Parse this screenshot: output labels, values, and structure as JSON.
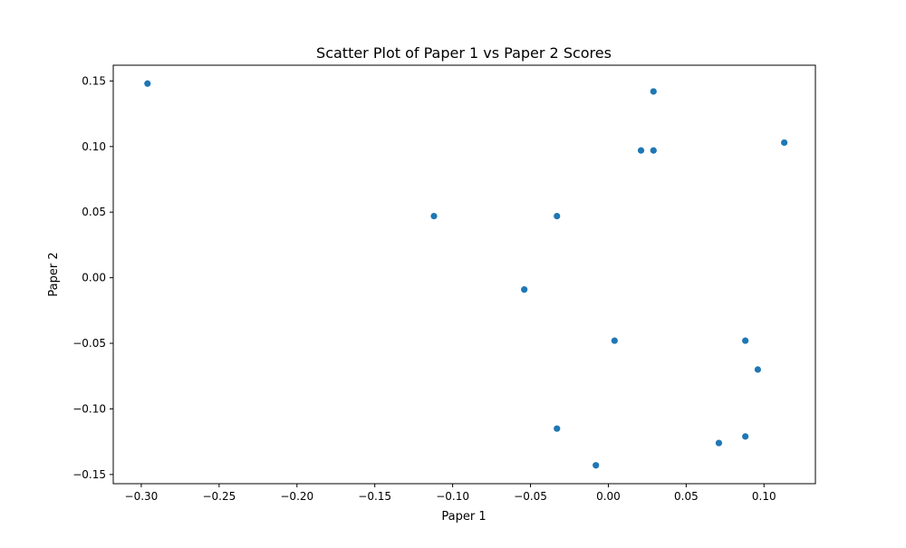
{
  "chart_data": {
    "type": "scatter",
    "title": "Scatter Plot of Paper 1 vs Paper 2 Scores",
    "xlabel": "Paper 1",
    "ylabel": "Paper 2",
    "xlim": [
      -0.318,
      0.133
    ],
    "ylim": [
      -0.157,
      0.162
    ],
    "x_ticks": [
      -0.3,
      -0.25,
      -0.2,
      -0.15,
      -0.1,
      -0.05,
      0.0,
      0.05,
      0.1
    ],
    "x_tick_labels": [
      "−0.30",
      "−0.25",
      "−0.20",
      "−0.15",
      "−0.10",
      "−0.05",
      "0.00",
      "0.05",
      "0.10"
    ],
    "y_ticks": [
      -0.15,
      -0.1,
      -0.05,
      0.0,
      0.05,
      0.1,
      0.15
    ],
    "y_tick_labels": [
      "−0.15",
      "−0.10",
      "−0.05",
      "0.00",
      "0.05",
      "0.10",
      "0.15"
    ],
    "grid": false,
    "marker_color": "#1f77b4",
    "series": [
      {
        "points": [
          {
            "x": -0.296,
            "y": 0.148
          },
          {
            "x": 0.029,
            "y": 0.142
          },
          {
            "x": 0.113,
            "y": 0.103
          },
          {
            "x": 0.021,
            "y": 0.097
          },
          {
            "x": 0.029,
            "y": 0.097
          },
          {
            "x": -0.112,
            "y": 0.047
          },
          {
            "x": -0.033,
            "y": 0.047
          },
          {
            "x": -0.054,
            "y": -0.009
          },
          {
            "x": 0.004,
            "y": -0.048
          },
          {
            "x": 0.088,
            "y": -0.048
          },
          {
            "x": 0.096,
            "y": -0.07
          },
          {
            "x": -0.033,
            "y": -0.115
          },
          {
            "x": 0.088,
            "y": -0.121
          },
          {
            "x": 0.071,
            "y": -0.126
          },
          {
            "x": -0.008,
            "y": -0.143
          }
        ]
      }
    ]
  }
}
